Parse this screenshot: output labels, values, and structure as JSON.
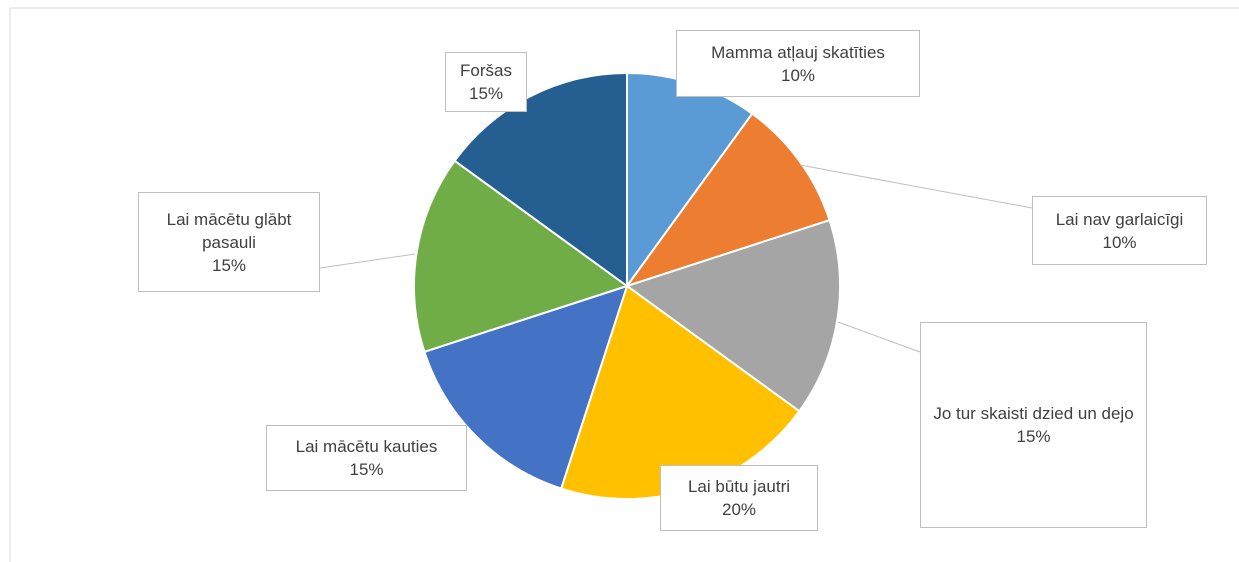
{
  "chart_data": {
    "type": "pie",
    "categories": [
      "Mamma atļauj skatīties",
      "Lai nav garlaicīgi",
      "Jo tur skaisti dzied un dejo",
      "Lai būtu jautri",
      "Lai mācētu kauties",
      "Lai mācētu glābt pasauli",
      "Foršas"
    ],
    "values": [
      10,
      10,
      15,
      20,
      15,
      15,
      15
    ],
    "value_labels": [
      "10%",
      "10%",
      "15%",
      "20%",
      "15%",
      "15%",
      "15%"
    ],
    "colors": [
      "#5b9bd5",
      "#ed7d31",
      "#a5a5a5",
      "#ffc000",
      "#4472c4",
      "#70ad47",
      "#255e91"
    ]
  }
}
